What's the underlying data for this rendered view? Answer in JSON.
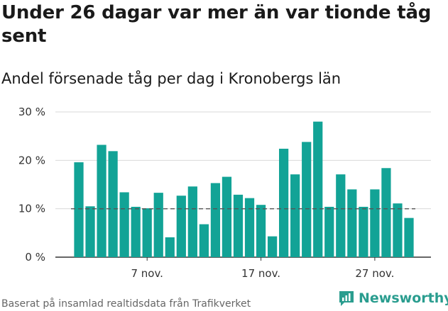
{
  "title": "Under 26 dagar var mer än var tionde tåg sent",
  "subtitle": "Andel försenade tåg per dag i Kronobergs län",
  "source": "Baserat på insamlad realtidsdata från Trafikverket",
  "brand": "Newsworthy",
  "colors": {
    "bar": "#12a396",
    "grid": "#d9d9d9",
    "reference": "#555555",
    "brand": "#2a9d8f"
  },
  "icons": {
    "brand_logo": "newsworthy-logo-icon"
  },
  "chart_data": {
    "type": "bar",
    "title": "Andel försenade tåg per dag i Kronobergs län",
    "ylabel": "",
    "xlabel": "",
    "ylim": [
      0,
      30
    ],
    "yticks": [
      0,
      10,
      20,
      30
    ],
    "ytick_labels": [
      "0 %",
      "10 %",
      "20 %",
      "30 %"
    ],
    "xtick_labels": [
      {
        "label": "7 nov.",
        "index": 6
      },
      {
        "label": "17 nov.",
        "index": 16
      },
      {
        "label": "27 nov.",
        "index": 26
      }
    ],
    "reference_line": 10,
    "grid": true,
    "x_start_day": 1,
    "values": [
      19.6,
      10.5,
      23.2,
      21.9,
      13.4,
      10.4,
      10.1,
      13.3,
      4.1,
      12.7,
      14.6,
      6.8,
      15.3,
      16.6,
      12.9,
      12.2,
      10.8,
      4.3,
      22.4,
      17.1,
      23.8,
      28.0,
      10.4,
      17.1,
      14.0,
      10.4,
      14.0,
      18.4,
      11.1,
      8.1
    ]
  }
}
